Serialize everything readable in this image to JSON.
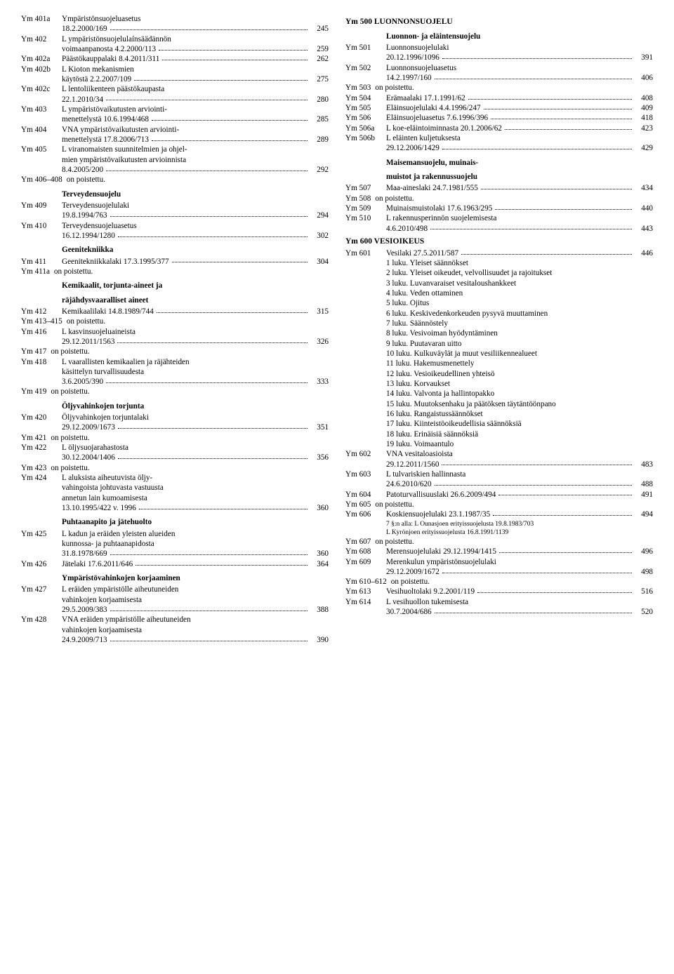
{
  "left": [
    {
      "type": "entry",
      "code": "Ym 401a",
      "lines": [
        "Ympäristönsuojeluasetus",
        "18.2.2000/169"
      ],
      "page": "245"
    },
    {
      "type": "entry",
      "code": "Ym 402",
      "lines": [
        "L ympäristönsuojelulaínsäädännön",
        "voimaanpanosta 4.2.2000/113"
      ],
      "page": "259"
    },
    {
      "type": "entry",
      "code": "Ym 402a",
      "lines": [
        "Päästökauppalaki 8.4.2011/311"
      ],
      "page": "262"
    },
    {
      "type": "entry",
      "code": "Ym 402b",
      "lines": [
        "L Kioton mekanismien",
        "käytöstä 2.2.2007/109"
      ],
      "page": "275"
    },
    {
      "type": "entry",
      "code": "Ym 402c",
      "lines": [
        "L lentoliikenteen päästökaupasta",
        "22.1.2010/34"
      ],
      "page": "280"
    },
    {
      "type": "entry",
      "code": "Ym 403",
      "lines": [
        "L ympäristövaikutusten arviointi-",
        "menettelystä 10.6.1994/468"
      ],
      "page": "285"
    },
    {
      "type": "entry",
      "code": "Ym 404",
      "lines": [
        "VNA ympäristövaikutusten arviointi-",
        "menettelystä 17.8.2006/713"
      ],
      "page": "289"
    },
    {
      "type": "entry",
      "code": "Ym 405",
      "lines": [
        "L viranomaisten suunnitelmien ja ohjel-",
        "mien ympäristövaikutusten arvioinnista",
        "8.4.2005/200"
      ],
      "page": "292"
    },
    {
      "type": "plain",
      "code": "Ym 406–408",
      "text": "on poistettu."
    },
    {
      "type": "heading",
      "text": "Terveydensuojelu"
    },
    {
      "type": "entry",
      "code": "Ym 409",
      "lines": [
        "Terveydensuojelulaki",
        "19.8.1994/763"
      ],
      "page": "294"
    },
    {
      "type": "entry",
      "code": "Ym 410",
      "lines": [
        "Terveydensuojeluasetus",
        "16.12.1994/1280"
      ],
      "page": "302"
    },
    {
      "type": "heading",
      "text": "Geenitekniikka"
    },
    {
      "type": "entry",
      "code": "Ym 411",
      "lines": [
        "Geenitekniikkalaki 17.3.1995/377"
      ],
      "page": "304"
    },
    {
      "type": "plain",
      "code": "Ym 411a",
      "text": "on poistettu."
    },
    {
      "type": "heading",
      "text": "Kemikaalit, torjunta-aineet ja"
    },
    {
      "type": "heading",
      "text": "räjähdysvaaralliset aineet"
    },
    {
      "type": "entry",
      "code": "Ym 412",
      "lines": [
        "Kemikaalilaki 14.8.1989/744"
      ],
      "page": "315"
    },
    {
      "type": "plain",
      "code": "Ym 413–415",
      "text": "on poistettu."
    },
    {
      "type": "entry",
      "code": "Ym 416",
      "lines": [
        "L kasvinsuojeluaineista",
        "29.12.2011/1563"
      ],
      "page": "326"
    },
    {
      "type": "plain",
      "code": "Ym 417",
      "text": "on poistettu."
    },
    {
      "type": "entry",
      "code": "Ym 418",
      "lines": [
        "L vaarallisten kemikaalien ja räjähteiden",
        "käsittelyn turvallisuudesta",
        "3.6.2005/390"
      ],
      "page": "333"
    },
    {
      "type": "plain",
      "code": "Ym 419",
      "text": "on poistettu."
    },
    {
      "type": "heading",
      "text": "Öljyvahinkojen torjunta"
    },
    {
      "type": "entry",
      "code": "Ym 420",
      "lines": [
        "Öljyvahinkojen torjuntalaki",
        "29.12.2009/1673"
      ],
      "page": "351"
    },
    {
      "type": "plain",
      "code": "Ym 421",
      "text": "on poistettu."
    },
    {
      "type": "entry",
      "code": "Ym 422",
      "lines": [
        " L öljysuojarahastosta",
        "30.12.2004/1406"
      ],
      "page": "356"
    },
    {
      "type": "plain",
      "code": "Ym 423",
      "text": "on poistettu."
    },
    {
      "type": "entry",
      "code": "Ym 424",
      "lines": [
        "L aluksista aiheutuvista öljy-",
        "vahingoista johtuvasta vastuusta",
        "annetun lain kumoamisesta",
        "13.10.1995/422 v. 1996"
      ],
      "page": "360"
    },
    {
      "type": "heading",
      "text": "Puhtaanapito ja jätehuolto"
    },
    {
      "type": "entry",
      "code": "Ym 425",
      "lines": [
        "L kadun ja eräiden yleisten alueiden",
        "kunnossa- ja puhtaanapidosta",
        "31.8.1978/669"
      ],
      "page": "360"
    },
    {
      "type": "entry",
      "code": "Ym 426",
      "lines": [
        "Jätelaki 17.6.2011/646"
      ],
      "page": "364"
    },
    {
      "type": "heading",
      "text": "Ympäristövahinkojen korjaaminen"
    },
    {
      "type": "entry",
      "code": "Ym 427",
      "lines": [
        "L eräiden ympäristölle aiheutuneiden",
        "vahinkojen korjaamisesta",
        "29.5.2009/383"
      ],
      "page": "388"
    },
    {
      "type": "entry",
      "code": "Ym 428",
      "lines": [
        "VNA eräiden ympäristölle aiheutuneiden",
        "vahinkojen korjaamisesta",
        "24.9.2009/713"
      ],
      "page": "390"
    }
  ],
  "right": [
    {
      "type": "heading-big",
      "text": "Ym 500 LUONNONSUOJELU"
    },
    {
      "type": "heading",
      "text": "Luonnon- ja eläintensuojelu"
    },
    {
      "type": "entry",
      "code": "Ym 501",
      "lines": [
        "Luonnonsuojelulaki",
        "20.12.1996/1096"
      ],
      "page": "391"
    },
    {
      "type": "entry",
      "code": "Ym 502",
      "lines": [
        "Luonnonsuojeluasetus",
        "14.2.1997/160"
      ],
      "page": "406"
    },
    {
      "type": "plain",
      "code": "Ym 503",
      "text": "on poistettu."
    },
    {
      "type": "entry",
      "code": "Ym 504",
      "lines": [
        "Erämaalaki 17.1.1991/62"
      ],
      "page": "408"
    },
    {
      "type": "entry",
      "code": "Ym 505",
      "lines": [
        "Eläinsuojelulaki 4.4.1996/247"
      ],
      "page": "409"
    },
    {
      "type": "entry",
      "code": "Ym 506",
      "lines": [
        "Eläinsuojeluasetus 7.6.1996/396"
      ],
      "page": "418"
    },
    {
      "type": "entry",
      "code": "Ym 506a",
      "lines": [
        "L koe-eläintoiminnasta 20.1.2006/62"
      ],
      "page": "423"
    },
    {
      "type": "entry",
      "code": "Ym 506b",
      "lines": [
        "L eläinten kuljetuksesta",
        "29.12.2006/1429"
      ],
      "page": "429"
    },
    {
      "type": "heading",
      "text": "Maisemansuojelu, muinais-"
    },
    {
      "type": "heading",
      "text": "muistot ja rakennussuojelu"
    },
    {
      "type": "entry",
      "code": "Ym 507",
      "lines": [
        "Maa-aineslaki 24.7.1981/555"
      ],
      "page": "434"
    },
    {
      "type": "plain",
      "code": "Ym 508",
      "text": "on poistettu."
    },
    {
      "type": "entry",
      "code": "Ym 509",
      "lines": [
        "Muinaismuistolaki 17.6.1963/295"
      ],
      "page": "440"
    },
    {
      "type": "entry",
      "code": "Ym 510",
      "lines": [
        "L rakennusperinnön suojelemisesta",
        "4.6.2010/498"
      ],
      "page": "443"
    },
    {
      "type": "heading-big",
      "text": "Ym 600 VESIOIKEUS"
    },
    {
      "type": "entry",
      "code": "Ym 601",
      "lines": [
        "Vesilaki 27.5.2011/587"
      ],
      "page": "446"
    },
    {
      "type": "chapter",
      "text": "1 luku. Yleiset säännökset"
    },
    {
      "type": "chapter",
      "text": "2 luku. Yleiset oikeudet, velvollisuudet ja rajoitukset"
    },
    {
      "type": "chapter",
      "text": "3 luku. Luvanvaraiset vesitaloushankkeet"
    },
    {
      "type": "chapter",
      "text": "4 luku. Veden ottaminen"
    },
    {
      "type": "chapter",
      "text": "5 luku. Ojitus"
    },
    {
      "type": "chapter",
      "text": "6 luku. Keskivedenkorkeuden pysyvä muuttaminen"
    },
    {
      "type": "chapter",
      "text": "7 luku. Säännöstely"
    },
    {
      "type": "chapter",
      "text": "8 luku. Vesivoiman hyödyntäminen"
    },
    {
      "type": "chapter",
      "text": "9 luku. Puutavaran uitto"
    },
    {
      "type": "chapter",
      "text": "10 luku. Kulkuväylät ja muut vesiliikennealueet"
    },
    {
      "type": "chapter",
      "text": "11 luku. Hakemusmenettely"
    },
    {
      "type": "chapter",
      "text": "12 luku. Vesioikeudellinen yhteisö"
    },
    {
      "type": "chapter",
      "text": "13 luku. Korvaukset"
    },
    {
      "type": "chapter",
      "text": "14 luku. Valvonta ja hallintopakko"
    },
    {
      "type": "chapter",
      "text": "15 luku. Muutoksenhaku ja päätöksen täytäntöönpano"
    },
    {
      "type": "chapter",
      "text": "16 luku. Rangaistussäännökset"
    },
    {
      "type": "chapter",
      "text": "17 luku. Kiinteistöoikeudellisia säännöksiä"
    },
    {
      "type": "chapter",
      "text": "18 luku. Erinäisiä säännöksiä"
    },
    {
      "type": "chapter",
      "text": "19 luku. Voimaantulo"
    },
    {
      "type": "entry",
      "code": "Ym 602",
      "lines": [
        "VNA vesitaloasioista",
        "29.12.2011/1560"
      ],
      "page": "483"
    },
    {
      "type": "entry",
      "code": "Ym 603",
      "lines": [
        "L tulvariskien hallinnasta",
        "24.6.2010/620"
      ],
      "page": "488"
    },
    {
      "type": "entry",
      "code": "Ym 604",
      "lines": [
        "Patoturvallisuuslaki 26.6.2009/494"
      ],
      "page": "491"
    },
    {
      "type": "plain",
      "code": "Ym 605",
      "text": "on poistettu."
    },
    {
      "type": "entry",
      "code": "Ym 606",
      "lines": [
        "Koskiensuojelulaki 23.1.1987/35"
      ],
      "page": "494"
    },
    {
      "type": "small",
      "text": "7 §:n alla: L Ounasjoen erityissuojelusta 19.8.1983/703"
    },
    {
      "type": "small",
      "text": "L Kyrönjoen erityissuojelusta 16.8.1991/1139"
    },
    {
      "type": "plain",
      "code": "Ym 607",
      "text": "on poistettu."
    },
    {
      "type": "entry",
      "code": "Ym 608",
      "lines": [
        "Merensuojelulaki 29.12.1994/1415"
      ],
      "page": "496"
    },
    {
      "type": "entry",
      "code": "Ym 609",
      "lines": [
        "Merenkulun ympäristönsuojelulaki",
        "29.12.2009/1672"
      ],
      "page": "498"
    },
    {
      "type": "plain",
      "code": "Ym 610–612",
      "text": "on poistettu."
    },
    {
      "type": "entry",
      "code": "Ym 613",
      "lines": [
        "Vesihuoltolaki 9.2.2001/119"
      ],
      "page": "516"
    },
    {
      "type": "entry",
      "code": "Ym 614",
      "lines": [
        "L vesihuollon tukemisesta",
        "30.7.2004/686"
      ],
      "page": "520"
    }
  ]
}
